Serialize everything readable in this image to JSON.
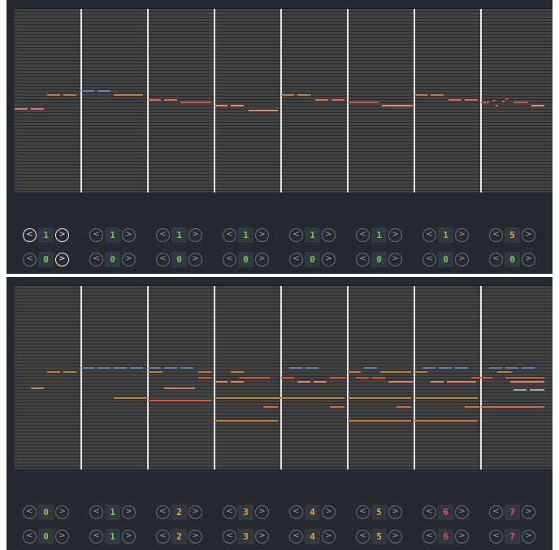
{
  "colors": {
    "panel_bg": "#252932",
    "roll_stripe_light": "#424242",
    "roll_stripe_dark": "#2c2c2c",
    "bar_line": "#e6e6e6",
    "num_green": "#6fd13d",
    "num_orange": "#f2a531",
    "num_red": "#f0504a",
    "arrow_active": "#f1eaea",
    "arrow_inactive": "#6b6f78"
  },
  "icons": {
    "prev": "chevron-left-circle-icon",
    "next": "chevron-right-circle-icon"
  },
  "arrow_glyphs": {
    "prev": "<",
    "next": ">"
  },
  "top_panel": {
    "bars": 8,
    "row1": [
      {
        "value": "1",
        "color": "num_green",
        "prev_active": true,
        "next_active": true
      },
      {
        "value": "1",
        "color": "num_green"
      },
      {
        "value": "1",
        "color": "num_green"
      },
      {
        "value": "1",
        "color": "num_green"
      },
      {
        "value": "1",
        "color": "num_green"
      },
      {
        "value": "1",
        "color": "num_green"
      },
      {
        "value": "1",
        "color": "num_green"
      },
      {
        "value": "5",
        "color": "num_orange"
      }
    ],
    "row2": [
      {
        "value": "0",
        "color": "num_green",
        "next_active": true
      },
      {
        "value": "0",
        "color": "num_green"
      },
      {
        "value": "0",
        "color": "num_green"
      },
      {
        "value": "0",
        "color": "num_green"
      },
      {
        "value": "0",
        "color": "num_green"
      },
      {
        "value": "0",
        "color": "num_green"
      },
      {
        "value": "0",
        "color": "num_green"
      },
      {
        "value": "0",
        "color": "num_green"
      }
    ]
  },
  "bottom_panel": {
    "bars": 8,
    "row1": [
      {
        "value": "0",
        "color": "num_green"
      },
      {
        "value": "1",
        "color": "num_green"
      },
      {
        "value": "2",
        "color": "num_orange"
      },
      {
        "value": "3",
        "color": "num_orange"
      },
      {
        "value": "4",
        "color": "num_orange"
      },
      {
        "value": "5",
        "color": "num_orange"
      },
      {
        "value": "6",
        "color": "num_red"
      },
      {
        "value": "7",
        "color": "num_red"
      }
    ],
    "row2": [
      {
        "value": "0",
        "color": "num_green"
      },
      {
        "value": "1",
        "color": "num_green"
      },
      {
        "value": "2",
        "color": "num_orange"
      },
      {
        "value": "3",
        "color": "num_orange"
      },
      {
        "value": "4",
        "color": "num_orange"
      },
      {
        "value": "5",
        "color": "num_orange"
      },
      {
        "value": "6",
        "color": "num_red"
      },
      {
        "value": "7",
        "color": "num_red"
      }
    ]
  }
}
